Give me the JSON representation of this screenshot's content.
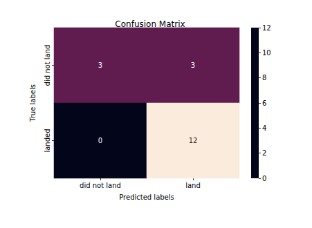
{
  "chart_data": {
    "type": "heatmap",
    "title": "Confusion Matrix",
    "x_label": "Predicted labels",
    "y_label": "True labels",
    "x_categories": [
      "did not land",
      "land"
    ],
    "y_categories": [
      "did not land",
      "landed"
    ],
    "values": [
      [
        3,
        3
      ],
      [
        0,
        12
      ]
    ],
    "colorbar_range": [
      0,
      12
    ],
    "colorbar_ticks": [
      0,
      2,
      4,
      6,
      8,
      10,
      12
    ],
    "data_labels": true
  }
}
